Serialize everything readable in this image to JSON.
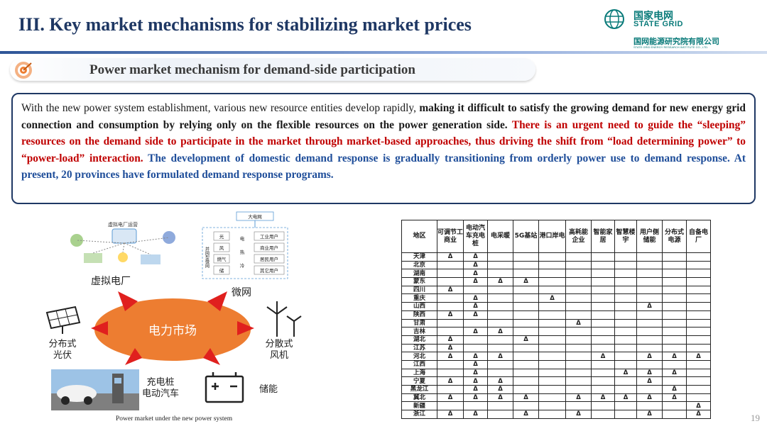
{
  "header": {
    "title": "III. Key market mechanisms for stabilizing market prices",
    "logo": {
      "cn": "国家电网",
      "en": "STATE GRID",
      "institute_cn": "国网能源研究院有限公司",
      "institute_en": "STATE GRID ENERGY RESEARCH INSTITUTE CO., LTD.",
      "color": "#0a7b7a"
    }
  },
  "section": {
    "title": "Power market mechanism for demand-side participation",
    "icon": "target-icon"
  },
  "body": {
    "p1_normal": "With the new power system establishment, various new resource entities develop rapidly, ",
    "p1_bold": "making it difficult to satisfy the growing demand for new energy grid connection and consumption by relying only on the flexible resources on the power generation side. ",
    "p1_red": "There is an urgent need to guide the “sleeping” resources on the demand side to participate in the market through market-based approaches, thus driving the shift from “load determining power” to “power-load” interaction.",
    "p1_blue": " The development of domestic demand response is gradually transitioning from orderly power use to demand response. At present, 20 provinces have formulated demand response programs.",
    "colors": {
      "red": "#c00000",
      "blue": "#1f4e9a"
    }
  },
  "figure": {
    "caption": "Power market under the new power system",
    "labels": {
      "center": "电力市场",
      "vpp": "虚拟电厂",
      "microgrid": "微网",
      "pv": "分布式\n光伏",
      "wind": "分散式\n风机",
      "ev": "充电桩\n电动汽车",
      "storage": "储能",
      "vpp_platform": "虚拟电厂运营",
      "big_grid": "大电网",
      "mg_sources": [
        "光",
        "风",
        "燃气",
        "储"
      ],
      "mg_energy": [
        "电",
        "热",
        "冷"
      ],
      "mg_users": [
        "工业用户",
        "商业用户",
        "居民用户",
        "其它用户"
      ],
      "mg_side": "并网型微网"
    }
  },
  "table": {
    "headers": [
      "地区",
      "可调节工商业",
      "电动汽车充电桩",
      "电采暖",
      "5G基站",
      "港口岸电",
      "高耗能企业",
      "智能家居",
      "智慧楼宇",
      "用户侧储能",
      "分布式电源",
      "自备电厂"
    ],
    "rows": [
      [
        "天津",
        "Δ",
        "Δ",
        "",
        "",
        "",
        "",
        "",
        "",
        "",
        "",
        ""
      ],
      [
        "北京",
        "",
        "Δ",
        "",
        "",
        "",
        "",
        "",
        "",
        "",
        "",
        ""
      ],
      [
        "湖南",
        "",
        "Δ",
        "",
        "",
        "",
        "",
        "",
        "",
        "",
        "",
        ""
      ],
      [
        "蒙东",
        "",
        "Δ",
        "Δ",
        "Δ",
        "",
        "",
        "",
        "",
        "",
        "",
        ""
      ],
      [
        "四川",
        "Δ",
        "",
        "",
        "",
        "",
        "",
        "",
        "",
        "",
        "",
        ""
      ],
      [
        "重庆",
        "",
        "Δ",
        "",
        "",
        "Δ",
        "",
        "",
        "",
        "",
        "",
        ""
      ],
      [
        "山西",
        "",
        "Δ",
        "",
        "",
        "",
        "",
        "",
        "",
        "Δ",
        "",
        ""
      ],
      [
        "陕西",
        "Δ",
        "Δ",
        "",
        "",
        "",
        "",
        "",
        "",
        "",
        "",
        ""
      ],
      [
        "甘肃",
        "",
        "",
        "",
        "",
        "",
        "Δ",
        "",
        "",
        "",
        "",
        ""
      ],
      [
        "吉林",
        "",
        "Δ",
        "Δ",
        "",
        "",
        "",
        "",
        "",
        "",
        "",
        ""
      ],
      [
        "湖北",
        "Δ",
        "",
        "",
        "Δ",
        "",
        "",
        "",
        "",
        "",
        "",
        ""
      ],
      [
        "江苏",
        "Δ",
        "",
        "",
        "",
        "",
        "",
        "",
        "",
        "",
        "",
        ""
      ],
      [
        "河北",
        "Δ",
        "Δ",
        "Δ",
        "",
        "",
        "",
        "Δ",
        "",
        "Δ",
        "Δ",
        "Δ"
      ],
      [
        "江西",
        "",
        "Δ",
        "",
        "",
        "",
        "",
        "",
        "",
        "",
        "",
        ""
      ],
      [
        "上海",
        "",
        "Δ",
        "",
        "",
        "",
        "",
        "",
        "Δ",
        "Δ",
        "Δ",
        ""
      ],
      [
        "宁夏",
        "Δ",
        "Δ",
        "Δ",
        "",
        "",
        "",
        "",
        "",
        "Δ",
        "",
        ""
      ],
      [
        "黑龙江",
        "",
        "Δ",
        "Δ",
        "",
        "",
        "",
        "",
        "",
        "",
        "Δ",
        ""
      ],
      [
        "冀北",
        "Δ",
        "Δ",
        "Δ",
        "Δ",
        "",
        "Δ",
        "Δ",
        "Δ",
        "Δ",
        "Δ",
        ""
      ],
      [
        "新疆",
        "",
        "",
        "",
        "",
        "",
        "",
        "",
        "",
        "",
        "",
        "Δ"
      ],
      [
        "浙江",
        "Δ",
        "Δ",
        "",
        "Δ",
        "",
        "Δ",
        "",
        "",
        "Δ",
        "",
        "Δ"
      ]
    ]
  },
  "page_number": "19"
}
